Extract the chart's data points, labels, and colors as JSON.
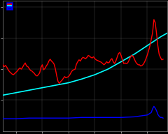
{
  "bg_color": "#000000",
  "plot_bg_color": "#000000",
  "grid_color": "#666666",
  "red_line_color": "#ff0000",
  "cyan_line_color": "#00ffff",
  "blue_line_color": "#0000ff",
  "red_label": "",
  "cyan_label": "",
  "blue_label": "",
  "xlim": [
    1890,
    2015
  ],
  "ylim": [
    0,
    210
  ],
  "red_data": [
    [
      1890,
      107
    ],
    [
      1891,
      104
    ],
    [
      1892,
      106
    ],
    [
      1893,
      103
    ],
    [
      1894,
      99
    ],
    [
      1895,
      96
    ],
    [
      1896,
      94
    ],
    [
      1897,
      92
    ],
    [
      1898,
      91
    ],
    [
      1899,
      93
    ],
    [
      1900,
      95
    ],
    [
      1901,
      97
    ],
    [
      1902,
      100
    ],
    [
      1903,
      102
    ],
    [
      1904,
      100
    ],
    [
      1905,
      103
    ],
    [
      1906,
      107
    ],
    [
      1907,
      110
    ],
    [
      1908,
      105
    ],
    [
      1909,
      104
    ],
    [
      1910,
      101
    ],
    [
      1911,
      98
    ],
    [
      1912,
      97
    ],
    [
      1913,
      95
    ],
    [
      1914,
      93
    ],
    [
      1915,
      90
    ],
    [
      1916,
      89
    ],
    [
      1917,
      91
    ],
    [
      1918,
      94
    ],
    [
      1919,
      103
    ],
    [
      1920,
      107
    ],
    [
      1921,
      99
    ],
    [
      1922,
      101
    ],
    [
      1923,
      105
    ],
    [
      1924,
      108
    ],
    [
      1925,
      113
    ],
    [
      1926,
      116
    ],
    [
      1927,
      113
    ],
    [
      1928,
      111
    ],
    [
      1929,
      108
    ],
    [
      1930,
      100
    ],
    [
      1931,
      89
    ],
    [
      1932,
      80
    ],
    [
      1933,
      77
    ],
    [
      1934,
      80
    ],
    [
      1935,
      82
    ],
    [
      1936,
      85
    ],
    [
      1937,
      88
    ],
    [
      1938,
      86
    ],
    [
      1939,
      87
    ],
    [
      1940,
      88
    ],
    [
      1941,
      91
    ],
    [
      1942,
      95
    ],
    [
      1943,
      98
    ],
    [
      1944,
      99
    ],
    [
      1945,
      100
    ],
    [
      1946,
      108
    ],
    [
      1947,
      112
    ],
    [
      1948,
      115
    ],
    [
      1949,
      113
    ],
    [
      1950,
      117
    ],
    [
      1951,
      119
    ],
    [
      1952,
      118
    ],
    [
      1953,
      117
    ],
    [
      1954,
      119
    ],
    [
      1955,
      122
    ],
    [
      1956,
      121
    ],
    [
      1957,
      119
    ],
    [
      1958,
      118
    ],
    [
      1959,
      120
    ],
    [
      1960,
      117
    ],
    [
      1961,
      115
    ],
    [
      1962,
      114
    ],
    [
      1963,
      113
    ],
    [
      1964,
      112
    ],
    [
      1965,
      111
    ],
    [
      1966,
      109
    ],
    [
      1967,
      107
    ],
    [
      1968,
      109
    ],
    [
      1969,
      112
    ],
    [
      1970,
      110
    ],
    [
      1971,
      111
    ],
    [
      1972,
      115
    ],
    [
      1973,
      117
    ],
    [
      1974,
      112
    ],
    [
      1975,
      109
    ],
    [
      1976,
      113
    ],
    [
      1977,
      119
    ],
    [
      1978,
      125
    ],
    [
      1979,
      127
    ],
    [
      1980,
      122
    ],
    [
      1981,
      115
    ],
    [
      1982,
      109
    ],
    [
      1983,
      110
    ],
    [
      1984,
      109
    ],
    [
      1985,
      110
    ],
    [
      1986,
      114
    ],
    [
      1987,
      119
    ],
    [
      1988,
      122
    ],
    [
      1989,
      121
    ],
    [
      1990,
      117
    ],
    [
      1991,
      112
    ],
    [
      1992,
      109
    ],
    [
      1993,
      107
    ],
    [
      1994,
      107
    ],
    [
      1995,
      105
    ],
    [
      1996,
      106
    ],
    [
      1997,
      108
    ],
    [
      1998,
      112
    ],
    [
      1999,
      117
    ],
    [
      2000,
      123
    ],
    [
      2001,
      130
    ],
    [
      2002,
      138
    ],
    [
      2003,
      148
    ],
    [
      2004,
      159
    ],
    [
      2005,
      180
    ],
    [
      2006,
      175
    ],
    [
      2007,
      158
    ],
    [
      2008,
      138
    ],
    [
      2009,
      124
    ],
    [
      2010,
      119
    ],
    [
      2011,
      115
    ],
    [
      2012,
      116
    ]
  ],
  "cyan_data": [
    [
      1890,
      58
    ],
    [
      1900,
      62
    ],
    [
      1910,
      66
    ],
    [
      1920,
      70
    ],
    [
      1930,
      74
    ],
    [
      1940,
      78
    ],
    [
      1950,
      84
    ],
    [
      1960,
      91
    ],
    [
      1970,
      100
    ],
    [
      1980,
      112
    ],
    [
      1990,
      124
    ],
    [
      2000,
      138
    ],
    [
      2010,
      152
    ],
    [
      2015,
      158
    ]
  ],
  "blue_data": [
    [
      1890,
      20
    ],
    [
      1900,
      20
    ],
    [
      1910,
      21
    ],
    [
      1920,
      21
    ],
    [
      1930,
      21
    ],
    [
      1940,
      21
    ],
    [
      1950,
      22
    ],
    [
      1960,
      22
    ],
    [
      1970,
      22
    ],
    [
      1980,
      22
    ],
    [
      1990,
      23
    ],
    [
      2000,
      26
    ],
    [
      2003,
      30
    ],
    [
      2004,
      36
    ],
    [
      2005,
      40
    ],
    [
      2006,
      37
    ],
    [
      2007,
      33
    ],
    [
      2008,
      27
    ],
    [
      2009,
      24
    ],
    [
      2010,
      22
    ],
    [
      2011,
      22
    ],
    [
      2012,
      21
    ]
  ]
}
